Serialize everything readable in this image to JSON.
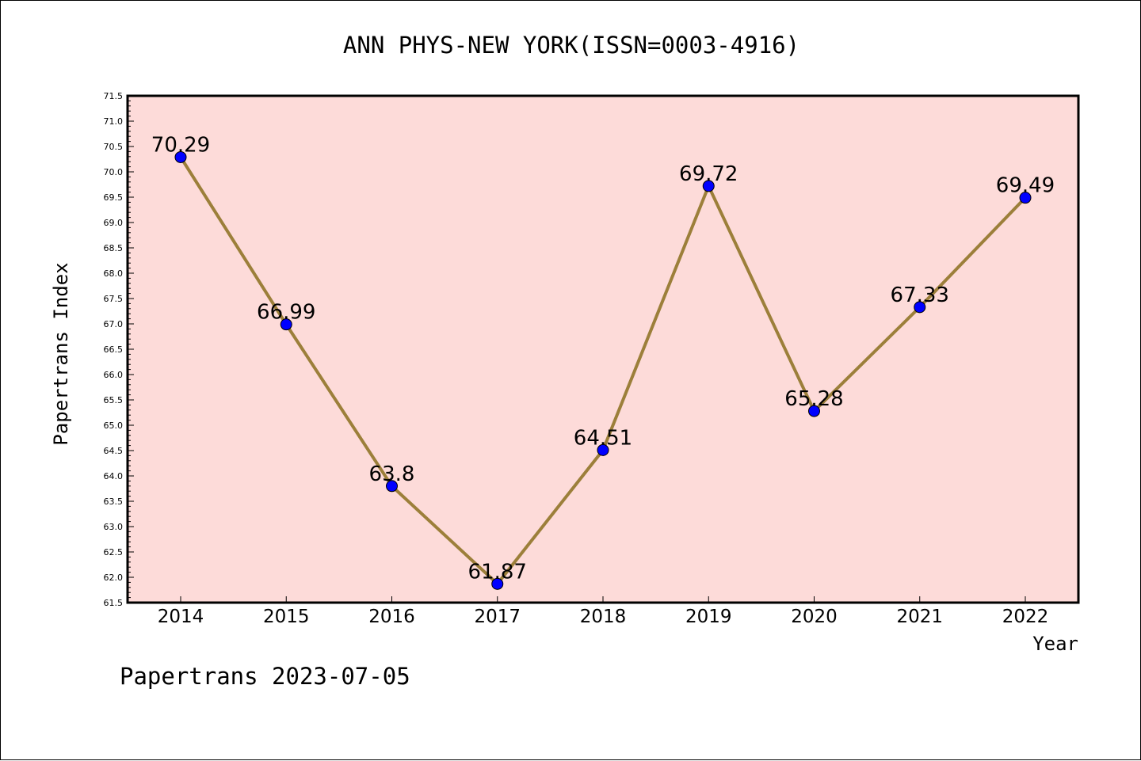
{
  "chart_data": {
    "type": "line",
    "title": "ANN PHYS-NEW YORK(ISSN=0003-4916)",
    "xlabel": "Year",
    "ylabel": "Papertrans Index",
    "footer": "Papertrans 2023-07-05",
    "categories": [
      "2014",
      "2015",
      "2016",
      "2017",
      "2018",
      "2019",
      "2020",
      "2021",
      "2022"
    ],
    "series": [
      {
        "values": [
          70.29,
          66.99,
          63.8,
          61.87,
          64.51,
          69.72,
          65.28,
          67.33,
          69.49
        ],
        "labels": [
          "70.29",
          "66.99",
          "63.8",
          "61.87",
          "64.51",
          "69.72",
          "65.28",
          "67.33",
          "69.49"
        ]
      }
    ],
    "ylim": [
      61.5,
      71.5
    ],
    "yticks": [
      "61.5",
      "62.0",
      "62.5",
      "63.0",
      "63.5",
      "64.0",
      "64.5",
      "65.0",
      "65.5",
      "66.0",
      "66.5",
      "67.0",
      "67.5",
      "68.0",
      "68.5",
      "69.0",
      "69.5",
      "70.0",
      "70.5",
      "71.0",
      "71.5"
    ],
    "grid": false,
    "colors": {
      "plot_background": "#fddbd9",
      "line": "#9c7f3a",
      "marker": "#0000ff"
    }
  }
}
